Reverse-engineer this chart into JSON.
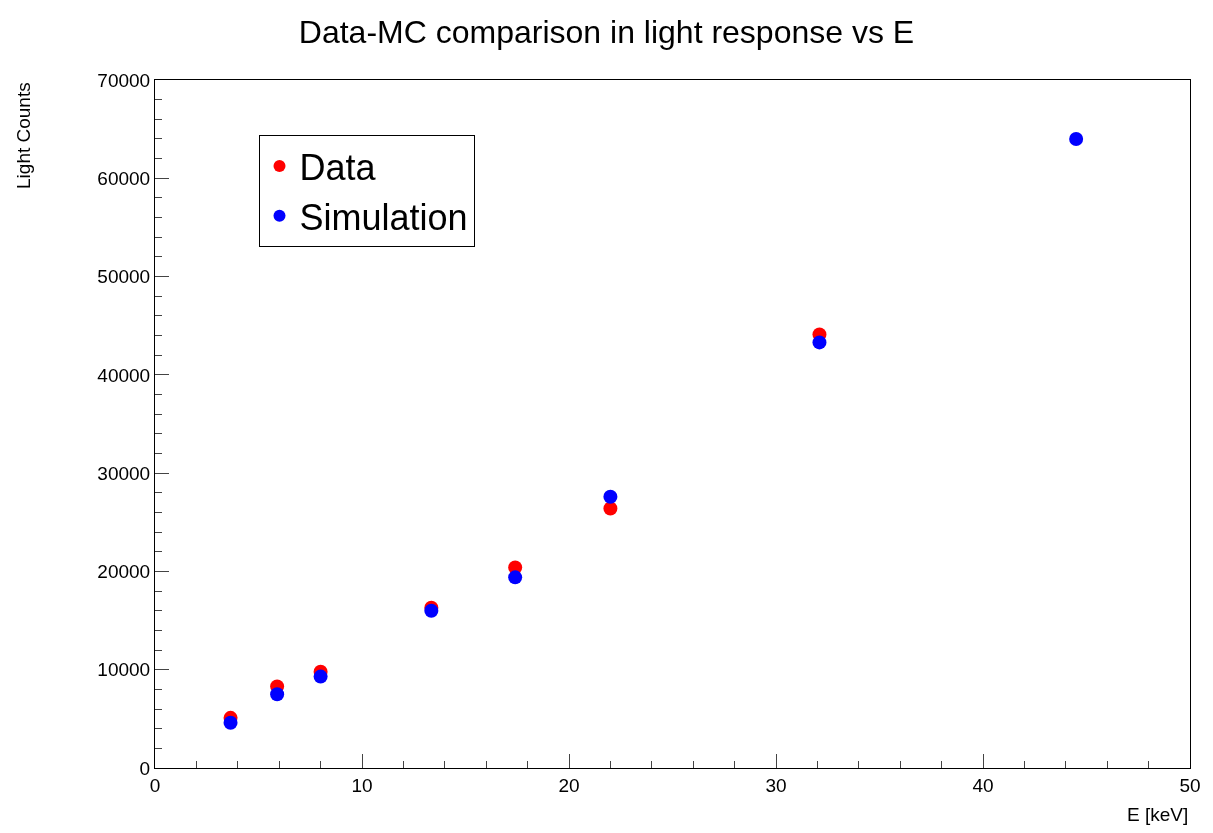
{
  "chart_data": {
    "type": "scatter",
    "title": "Data-MC comparison in light response vs E",
    "xlabel": "E [keV]",
    "ylabel": "Light Counts",
    "series": [
      {
        "name": "Data",
        "color": "#ff0000",
        "x": [
          3.65,
          5.9,
          8.0,
          13.35,
          17.4,
          22.0,
          32.1
        ],
        "values": [
          5100,
          8300,
          9800,
          16300,
          20400,
          26400,
          44100
        ]
      },
      {
        "name": "Simulation",
        "color": "#0000ff",
        "x": [
          3.65,
          5.9,
          8.0,
          13.35,
          17.4,
          22.0,
          32.1,
          44.5
        ],
        "values": [
          4600,
          7500,
          9300,
          16000,
          19400,
          27600,
          43300,
          64000
        ]
      }
    ],
    "xlim": [
      0,
      50
    ],
    "xticks": [
      0,
      10,
      20,
      30,
      40,
      50
    ],
    "ylim": [
      0,
      70000
    ],
    "yticks": [
      0,
      10000,
      20000,
      30000,
      40000,
      50000,
      60000,
      70000
    ],
    "legend": "top left",
    "marker": "circle"
  }
}
